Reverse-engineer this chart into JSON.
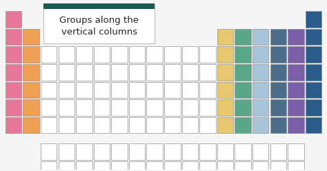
{
  "bg_color": "#f5f5f5",
  "colors": {
    "pink": "#e8779a",
    "orange": "#f0a055",
    "yellow": "#e8c86e",
    "teal": "#5aa88a",
    "light_blue": "#a8c4d8",
    "dark_blue_slate": "#4a6e8a",
    "purple": "#7b5ea8",
    "navy": "#2a5c8a",
    "white_cell": "#ffffff",
    "cell_border": "#909090",
    "dark_teal_header": "#1a5a50",
    "text_color": "#222222"
  },
  "annotation_text": "Groups along the\nvertical columns",
  "annotation_fontsize": 9.5,
  "figsize": [
    4.74,
    2.48
  ],
  "dpi": 100
}
